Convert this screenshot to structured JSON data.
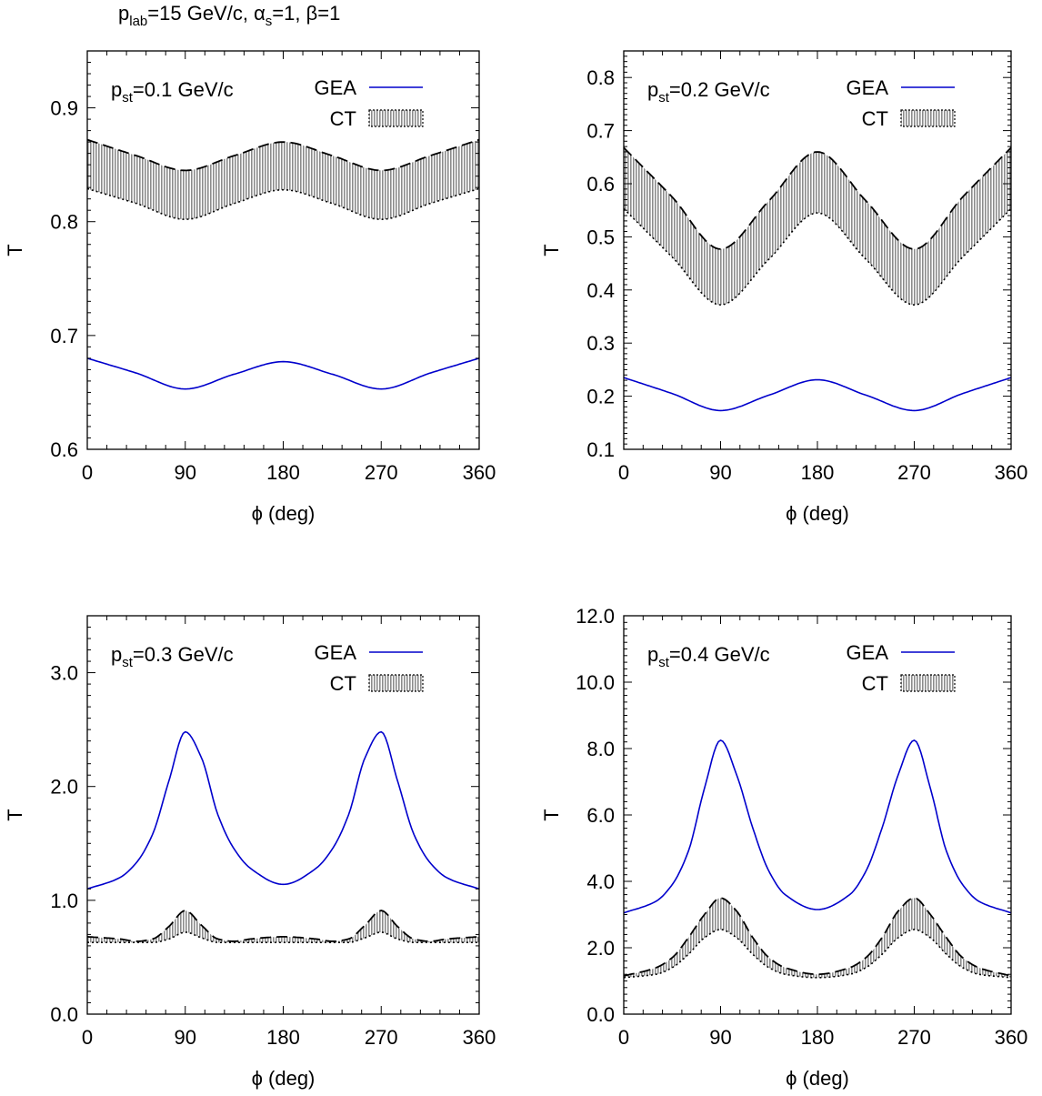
{
  "figure": {
    "title_parts": {
      "p": "p",
      "lab": "lab",
      "mid": "=15 GeV/c, ",
      "alpha": "α",
      "s": "s",
      "end": "=1, β=1"
    }
  },
  "colors": {
    "gea": "#0000cc",
    "ct_fill": "#999999",
    "frame": "#000000"
  },
  "chart_data": [
    {
      "type": "line",
      "panel_label": {
        "p": "p",
        "sub": "st",
        "rest": "=0.1 GeV/c"
      },
      "xlabel": "ϕ (deg)",
      "ylabel": "T",
      "xlim": [
        0,
        360
      ],
      "ylim": [
        0.6,
        0.95
      ],
      "xticks": [
        0,
        90,
        180,
        270,
        360
      ],
      "xtick_labels": [
        "0",
        "90",
        "180",
        "270",
        "360"
      ],
      "yticks": [
        0.6,
        0.7,
        0.8,
        0.9
      ],
      "ytick_labels": [
        "0.6",
        "0.7",
        "0.8",
        "0.9"
      ],
      "legend": {
        "position": "top-right",
        "entries": [
          "GEA",
          "CT"
        ]
      },
      "x": [
        0,
        45,
        90,
        135,
        180,
        225,
        270,
        315,
        360
      ],
      "series": [
        {
          "name": "GEA",
          "style": "solid",
          "values": [
            0.68,
            0.667,
            0.653,
            0.666,
            0.677,
            0.666,
            0.653,
            0.667,
            0.68
          ]
        },
        {
          "name": "CT",
          "style": "band",
          "upper": [
            0.872,
            0.858,
            0.845,
            0.858,
            0.87,
            0.858,
            0.845,
            0.858,
            0.872
          ],
          "lower": [
            0.829,
            0.816,
            0.802,
            0.816,
            0.828,
            0.816,
            0.802,
            0.816,
            0.829
          ]
        }
      ]
    },
    {
      "type": "line",
      "panel_label": {
        "p": "p",
        "sub": "st",
        "rest": "=0.2 GeV/c"
      },
      "xlabel": "ϕ (deg)",
      "ylabel": "T",
      "xlim": [
        0,
        360
      ],
      "ylim": [
        0.1,
        0.85
      ],
      "xticks": [
        0,
        90,
        180,
        270,
        360
      ],
      "xtick_labels": [
        "0",
        "90",
        "180",
        "270",
        "360"
      ],
      "yticks": [
        0.1,
        0.2,
        0.3,
        0.4,
        0.5,
        0.6,
        0.7,
        0.8
      ],
      "ytick_labels": [
        "0.1",
        "0.2",
        "0.3",
        "0.4",
        "0.5",
        "0.6",
        "0.7",
        "0.8"
      ],
      "legend": {
        "position": "top-right",
        "entries": [
          "GEA",
          "CT"
        ]
      },
      "x": [
        0,
        45,
        90,
        135,
        180,
        225,
        270,
        315,
        360
      ],
      "series": [
        {
          "name": "GEA",
          "style": "solid",
          "values": [
            0.235,
            0.205,
            0.173,
            0.202,
            0.231,
            0.202,
            0.173,
            0.205,
            0.235
          ]
        },
        {
          "name": "CT",
          "style": "band",
          "upper": [
            0.668,
            0.575,
            0.477,
            0.568,
            0.66,
            0.568,
            0.477,
            0.575,
            0.668
          ],
          "lower": [
            0.553,
            0.462,
            0.372,
            0.458,
            0.545,
            0.458,
            0.372,
            0.462,
            0.553
          ]
        }
      ]
    },
    {
      "type": "line",
      "panel_label": {
        "p": "p",
        "sub": "st",
        "rest": "=0.3 GeV/c"
      },
      "xlabel": "ϕ (deg)",
      "ylabel": "T",
      "xlim": [
        0,
        360
      ],
      "ylim": [
        0.0,
        3.5
      ],
      "xticks": [
        0,
        90,
        180,
        270,
        360
      ],
      "xtick_labels": [
        "0",
        "90",
        "180",
        "270",
        "360"
      ],
      "yticks": [
        0.0,
        1.0,
        2.0,
        3.0
      ],
      "ytick_labels": [
        "0.0",
        "1.0",
        "2.0",
        "3.0"
      ],
      "legend": {
        "position": "top-right",
        "entries": [
          "GEA",
          "CT"
        ]
      },
      "x": [
        0,
        30,
        45,
        60,
        75,
        90,
        105,
        120,
        135,
        150,
        180,
        210,
        225,
        240,
        255,
        270,
        285,
        300,
        315,
        330,
        360
      ],
      "series": [
        {
          "name": "GEA",
          "style": "solid",
          "values": [
            1.1,
            1.2,
            1.33,
            1.58,
            2.05,
            2.48,
            2.25,
            1.75,
            1.45,
            1.28,
            1.14,
            1.28,
            1.45,
            1.75,
            2.25,
            2.48,
            2.05,
            1.58,
            1.33,
            1.2,
            1.1
          ]
        },
        {
          "name": "CT",
          "style": "band",
          "upper": [
            0.68,
            0.66,
            0.64,
            0.66,
            0.77,
            0.91,
            0.78,
            0.66,
            0.64,
            0.66,
            0.68,
            0.66,
            0.64,
            0.66,
            0.78,
            0.91,
            0.77,
            0.66,
            0.64,
            0.66,
            0.68
          ],
          "lower": [
            0.63,
            0.63,
            0.63,
            0.63,
            0.66,
            0.72,
            0.67,
            0.63,
            0.63,
            0.63,
            0.63,
            0.63,
            0.63,
            0.63,
            0.67,
            0.72,
            0.66,
            0.63,
            0.63,
            0.63,
            0.63
          ]
        }
      ]
    },
    {
      "type": "line",
      "panel_label": {
        "p": "p",
        "sub": "st",
        "rest": "=0.4 GeV/c"
      },
      "xlabel": "ϕ (deg)",
      "ylabel": "T",
      "xlim": [
        0,
        360
      ],
      "ylim": [
        0.0,
        12.0
      ],
      "xticks": [
        0,
        90,
        180,
        270,
        360
      ],
      "xtick_labels": [
        "0",
        "90",
        "180",
        "270",
        "360"
      ],
      "yticks": [
        0.0,
        2.0,
        4.0,
        6.0,
        8.0,
        10.0,
        12.0
      ],
      "ytick_labels": [
        "0.0",
        "2.0",
        "4.0",
        "6.0",
        "8.0",
        "10.0",
        "12.0"
      ],
      "legend": {
        "position": "top-right",
        "entries": [
          "GEA",
          "CT"
        ]
      },
      "x": [
        0,
        30,
        45,
        60,
        75,
        90,
        105,
        120,
        135,
        150,
        180,
        210,
        225,
        240,
        255,
        270,
        285,
        300,
        315,
        330,
        360
      ],
      "series": [
        {
          "name": "GEA",
          "style": "solid",
          "values": [
            3.05,
            3.4,
            3.9,
            4.9,
            6.8,
            8.25,
            7.2,
            5.6,
            4.3,
            3.6,
            3.15,
            3.6,
            4.3,
            5.6,
            7.2,
            8.25,
            6.8,
            4.9,
            3.9,
            3.4,
            3.05
          ]
        },
        {
          "name": "CT",
          "style": "band",
          "upper": [
            1.15,
            1.4,
            1.7,
            2.3,
            3.0,
            3.5,
            3.1,
            2.3,
            1.7,
            1.4,
            1.2,
            1.4,
            1.7,
            2.3,
            3.1,
            3.5,
            3.0,
            2.3,
            1.7,
            1.4,
            1.15
          ],
          "lower": [
            1.1,
            1.2,
            1.4,
            1.8,
            2.3,
            2.55,
            2.3,
            1.8,
            1.4,
            1.2,
            1.1,
            1.2,
            1.4,
            1.8,
            2.3,
            2.55,
            2.3,
            1.8,
            1.4,
            1.2,
            1.1
          ]
        }
      ]
    }
  ]
}
